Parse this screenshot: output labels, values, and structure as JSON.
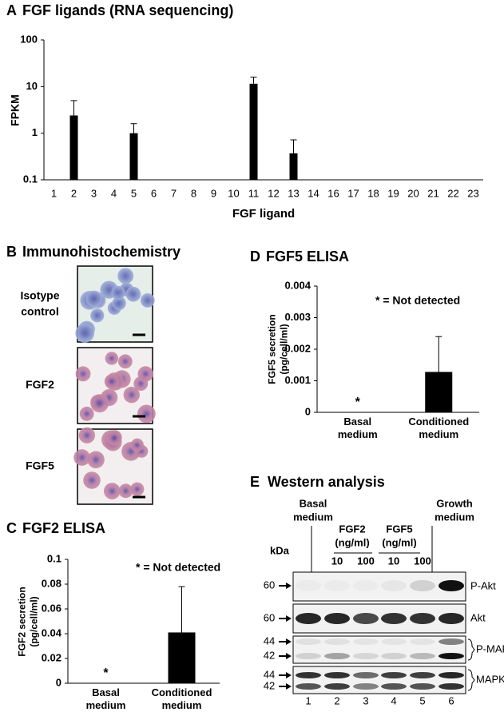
{
  "chart_data": [
    {
      "type": "bar",
      "label": "A",
      "title": "FGF ligands (RNA sequencing)",
      "xlabel": "FGF ligand",
      "ylabel": "FPKM",
      "categories": [
        "1",
        "2",
        "3",
        "4",
        "5",
        "6",
        "7",
        "8",
        "9",
        "10",
        "11",
        "12",
        "13",
        "14",
        "16",
        "17",
        "18",
        "19",
        "20",
        "21",
        "22",
        "23"
      ],
      "values": [
        null,
        2.4,
        null,
        null,
        1.0,
        null,
        null,
        null,
        null,
        null,
        11.5,
        null,
        0.37,
        null,
        null,
        null,
        null,
        null,
        null,
        null,
        null,
        null
      ],
      "errors": [
        null,
        2.6,
        null,
        null,
        0.6,
        null,
        null,
        null,
        null,
        null,
        4.5,
        null,
        0.35,
        null,
        null,
        null,
        null,
        null,
        null,
        null,
        null,
        null
      ],
      "color": "#000000",
      "log_scale": true,
      "ylim": [
        0.1,
        100
      ],
      "yticks": [
        0.1,
        1,
        10,
        100
      ]
    },
    {
      "type": "bar",
      "label": "C",
      "title": "FGF2 ELISA",
      "ylabel": "FGF2 secretion (pg/cell/ml)",
      "categories": [
        "Basal medium",
        "Conditioned medium"
      ],
      "values": [
        null,
        0.041
      ],
      "errors": [
        null,
        0.037
      ],
      "color": "#000000",
      "log_scale": false,
      "ylim": [
        0,
        0.1
      ],
      "yticks": [
        0,
        0.02,
        0.04,
        0.06,
        0.08,
        0.1
      ],
      "annotations": [
        "* = Not detected",
        "*"
      ]
    },
    {
      "type": "bar",
      "label": "D",
      "title": "FGF5 ELISA",
      "ylabel": "FGF5 secretion (pg/cell/ml)",
      "categories": [
        "Basal medium",
        "Conditioned medium"
      ],
      "values": [
        null,
        0.00128
      ],
      "errors": [
        null,
        0.00112
      ],
      "color": "#000000",
      "log_scale": false,
      "ylim": [
        0,
        0.004
      ],
      "yticks": [
        0,
        0.001,
        0.002,
        0.003,
        0.004
      ],
      "annotations": [
        "* = Not detected",
        "*"
      ]
    }
  ],
  "panel_b": {
    "label": "B",
    "title": "Immunohistochemistry",
    "rows": [
      "Isotype control",
      "FGF2",
      "FGF5"
    ]
  },
  "panel_e": {
    "label": "E",
    "title": "Western analysis",
    "kda": "kDa",
    "groups": [
      "Basal medium",
      "FGF2 (ng/ml)",
      "FGF5 (ng/ml)",
      "Growth medium"
    ],
    "doses": [
      "10",
      "100",
      "10",
      "100"
    ],
    "rows": [
      {
        "name": "P-Akt",
        "markers": [
          60
        ]
      },
      {
        "name": "Akt",
        "markers": [
          60
        ]
      },
      {
        "name": "P-MAPK",
        "markers": [
          44,
          42
        ]
      },
      {
        "name": "MAPK",
        "markers": [
          44,
          42
        ]
      }
    ],
    "lanes": [
      "1",
      "2",
      "3",
      "4",
      "5",
      "6"
    ]
  }
}
